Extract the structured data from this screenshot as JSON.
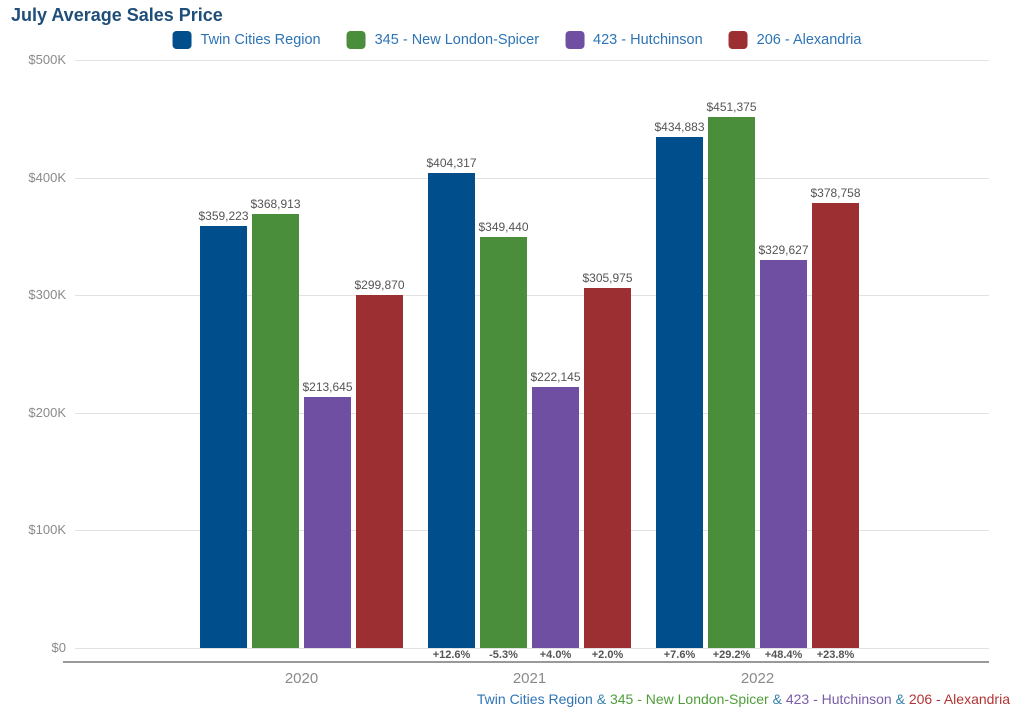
{
  "title": "July Average Sales Price",
  "legend": {
    "items": [
      {
        "label": "Twin Cities Region",
        "color": "#004f8c"
      },
      {
        "label": "345 - New London-Spicer",
        "color": "#4a8d3a"
      },
      {
        "label": "423 - Hutchinson",
        "color": "#6e4fa1"
      },
      {
        "label": "206 - Alexandria",
        "color": "#9c2f31"
      }
    ]
  },
  "chart_data": {
    "type": "bar",
    "title": "July Average Sales Price",
    "categories": [
      "2020",
      "2021",
      "2022"
    ],
    "series": [
      {
        "name": "Twin Cities Region",
        "color": "#004f8c",
        "values": [
          359223,
          404317,
          434883
        ],
        "value_labels": [
          "$359,223",
          "$404,317",
          "$434,883"
        ],
        "pct_change": [
          null,
          "+12.6%",
          "+7.6%"
        ]
      },
      {
        "name": "345 - New London-Spicer",
        "color": "#4a8d3a",
        "values": [
          368913,
          349440,
          451375
        ],
        "value_labels": [
          "$368,913",
          "$349,440",
          "$451,375"
        ],
        "pct_change": [
          null,
          "-5.3%",
          "+29.2%"
        ]
      },
      {
        "name": "423 - Hutchinson",
        "color": "#6e4fa1",
        "values": [
          213645,
          222145,
          329627
        ],
        "value_labels": [
          "$213,645",
          "$222,145",
          "$329,627"
        ],
        "pct_change": [
          null,
          "+4.0%",
          "+48.4%"
        ]
      },
      {
        "name": "206 - Alexandria",
        "color": "#9c2f31",
        "values": [
          299870,
          305975,
          378758
        ],
        "value_labels": [
          "$299,870",
          "$305,975",
          "$378,758"
        ],
        "pct_change": [
          null,
          "+2.0%",
          "+23.8%"
        ]
      }
    ],
    "ylim": [
      0,
      500000
    ],
    "yticks": [
      {
        "value": 500000,
        "label": "$500K"
      },
      {
        "value": 400000,
        "label": "$400K"
      },
      {
        "value": 300000,
        "label": "$300K"
      },
      {
        "value": 200000,
        "label": "$200K"
      },
      {
        "value": 100000,
        "label": "$100K"
      },
      {
        "value": 0,
        "label": "$0"
      }
    ],
    "legend_position": "top",
    "grid": true
  },
  "footer": {
    "separator": " & ",
    "separator_color": "#3482ab",
    "items": [
      {
        "label": "Twin Cities Region",
        "color": "#2e74b5"
      },
      {
        "label": "345 - New London-Spicer",
        "color": "#4f9d3a"
      },
      {
        "label": "423 - Hutchinson",
        "color": "#7a5ca8"
      },
      {
        "label": "206 - Alexandria",
        "color": "#b23434"
      }
    ]
  }
}
